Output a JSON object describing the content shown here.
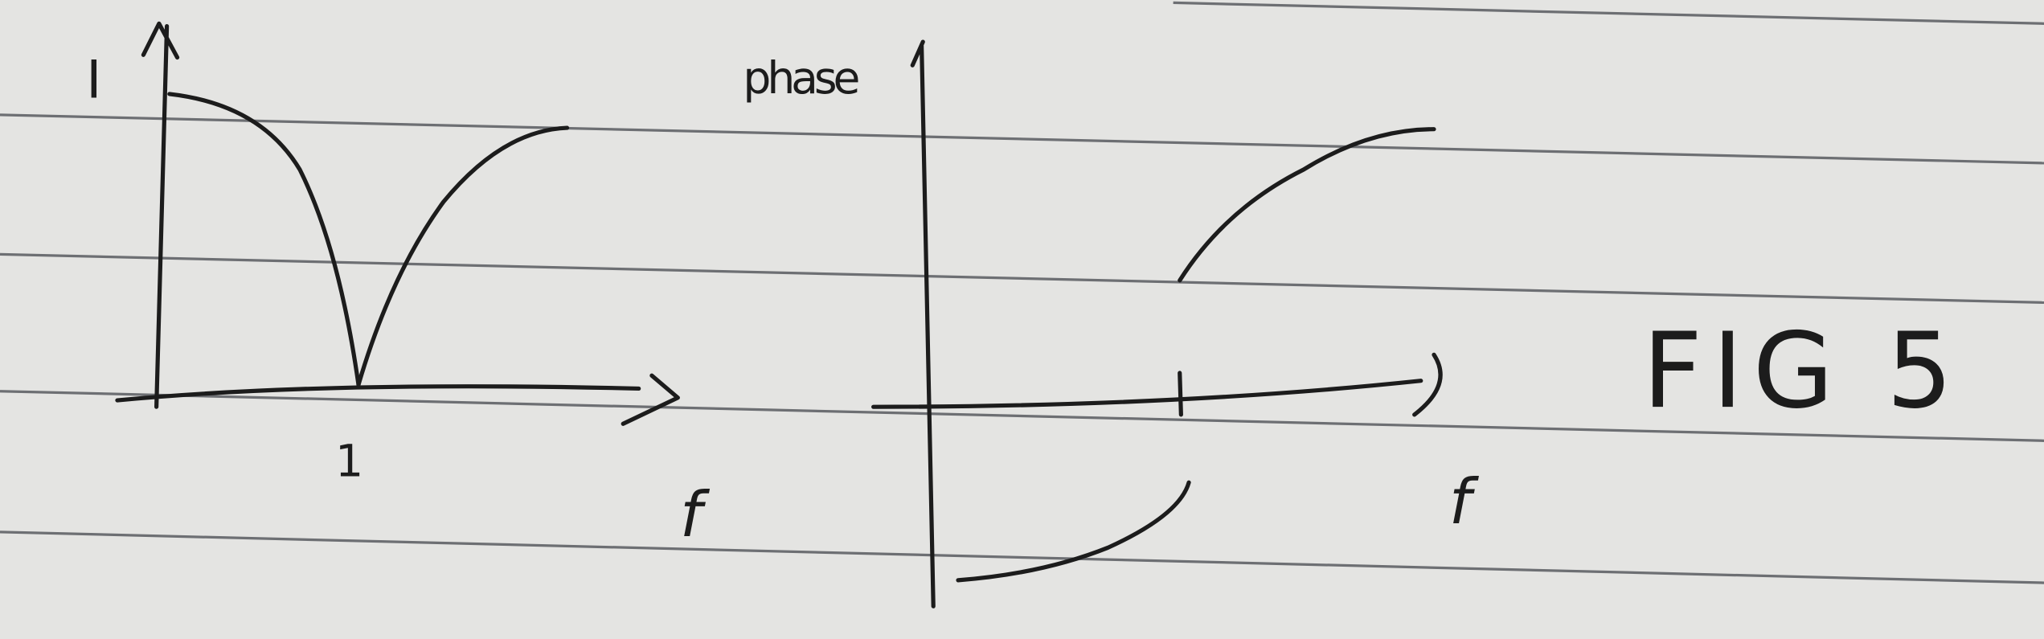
{
  "left_plot": {
    "y_label": "I",
    "x_label": "f",
    "tick_label": "1"
  },
  "right_plot": {
    "y_label": "phase",
    "x_label": "f"
  },
  "caption": "FIG 5"
}
